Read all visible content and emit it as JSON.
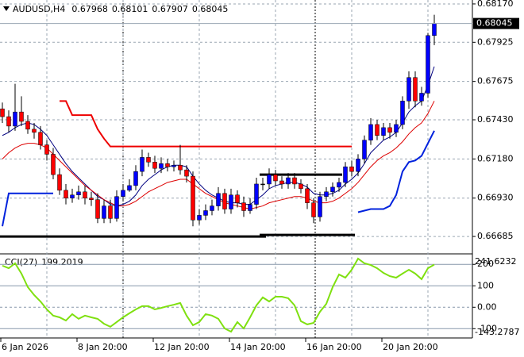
{
  "chart_data": [
    {
      "type": "candlestick",
      "title": "AUDUSD,H4",
      "categories": [
        "6 Jan 2026",
        null,
        null,
        null,
        null,
        null,
        null,
        null,
        null,
        null,
        null,
        null,
        "8 Jan 20:00",
        null,
        null,
        null,
        null,
        null,
        null,
        null,
        null,
        null,
        null,
        null,
        "12 Jan 20:00",
        null,
        null,
        null,
        null,
        null,
        null,
        null,
        null,
        null,
        null,
        null,
        "14 Jan 20:00",
        null,
        null,
        null,
        null,
        null,
        null,
        null,
        null,
        null,
        null,
        null,
        "16 Jan 20:00",
        null,
        null,
        null,
        null,
        null,
        null,
        null,
        null,
        null,
        null,
        null,
        "20 Jan 20:00",
        null,
        null,
        null,
        null,
        null,
        null,
        null,
        null
      ],
      "open": [
        0.675,
        0.6745,
        0.6739,
        0.6748,
        0.6742,
        0.6737,
        0.6735,
        0.6727,
        0.6721,
        0.6708,
        0.6698,
        0.6693,
        0.6695,
        0.6697,
        0.6693,
        0.6692,
        0.668,
        0.6688,
        0.668,
        0.6694,
        0.6698,
        0.6701,
        0.671,
        0.6719,
        0.6716,
        0.6712,
        0.6715,
        0.6713,
        0.6714,
        0.6711,
        0.6707,
        0.6679,
        0.6682,
        0.6685,
        0.6688,
        0.6696,
        0.6686,
        0.6695,
        0.669,
        0.6685,
        0.6689,
        0.6702,
        0.6702,
        0.6708,
        0.6704,
        0.6702,
        0.6706,
        0.6702,
        0.6699,
        0.669,
        0.6681,
        0.6694,
        0.6697,
        0.67,
        0.6703,
        0.6713,
        0.671,
        0.6718,
        0.673,
        0.674,
        0.6733,
        0.6738,
        0.6735,
        0.674,
        0.6755,
        0.677,
        0.6755,
        0.676,
        0.67968
      ],
      "high": [
        0.6754,
        0.6749,
        0.6766,
        0.6758,
        0.6746,
        0.6741,
        0.6739,
        0.673,
        0.6725,
        0.6712,
        0.6702,
        0.6699,
        0.6701,
        0.6701,
        0.6697,
        0.6696,
        0.6692,
        0.6692,
        0.6698,
        0.6702,
        0.6705,
        0.6714,
        0.6724,
        0.6722,
        0.672,
        0.6719,
        0.6718,
        0.6717,
        0.6727,
        0.6714,
        0.671,
        0.6686,
        0.6689,
        0.6692,
        0.67,
        0.6699,
        0.6699,
        0.6698,
        0.6694,
        0.6693,
        0.6706,
        0.6706,
        0.6712,
        0.6711,
        0.6707,
        0.6709,
        0.6709,
        0.6705,
        0.6702,
        0.6693,
        0.6697,
        0.67,
        0.6703,
        0.6706,
        0.6716,
        0.6717,
        0.6721,
        0.6733,
        0.6744,
        0.6743,
        0.6741,
        0.6741,
        0.6743,
        0.6758,
        0.6774,
        0.6774,
        0.6764,
        0.67985,
        0.68101
      ],
      "low": [
        0.6741,
        0.6735,
        0.6736,
        0.6739,
        0.6734,
        0.6731,
        0.6724,
        0.6717,
        0.6705,
        0.6695,
        0.6689,
        0.669,
        0.6692,
        0.6689,
        0.6688,
        0.6677,
        0.6677,
        0.6677,
        0.6678,
        0.6691,
        0.6697,
        0.6698,
        0.6707,
        0.6713,
        0.6709,
        0.6709,
        0.671,
        0.671,
        0.6708,
        0.6703,
        0.6675,
        0.6676,
        0.6679,
        0.6682,
        0.6685,
        0.6683,
        0.6683,
        0.6687,
        0.6681,
        0.6683,
        0.6686,
        0.6698,
        0.6699,
        0.6701,
        0.6699,
        0.6699,
        0.6699,
        0.6696,
        0.6686,
        0.6677,
        0.6678,
        0.6691,
        0.6694,
        0.6697,
        0.67,
        0.6707,
        0.6707,
        0.6715,
        0.6727,
        0.673,
        0.673,
        0.6731,
        0.6732,
        0.6737,
        0.675,
        0.6751,
        0.6752,
        0.6757,
        0.67907
      ],
      "close": [
        0.6745,
        0.6739,
        0.6748,
        0.6742,
        0.6737,
        0.6735,
        0.6727,
        0.6721,
        0.6708,
        0.6698,
        0.6693,
        0.6695,
        0.6697,
        0.6693,
        0.6692,
        0.668,
        0.6688,
        0.668,
        0.6694,
        0.6698,
        0.6701,
        0.671,
        0.6719,
        0.6716,
        0.6712,
        0.6715,
        0.6713,
        0.6714,
        0.6711,
        0.6707,
        0.6679,
        0.6682,
        0.6685,
        0.6688,
        0.6696,
        0.6686,
        0.6695,
        0.669,
        0.6685,
        0.6689,
        0.6702,
        0.6702,
        0.6708,
        0.6704,
        0.6702,
        0.6706,
        0.6702,
        0.6699,
        0.669,
        0.6681,
        0.6694,
        0.6697,
        0.67,
        0.6703,
        0.6713,
        0.671,
        0.6718,
        0.673,
        0.674,
        0.6733,
        0.6738,
        0.6735,
        0.674,
        0.6755,
        0.677,
        0.6755,
        0.676,
        0.67968,
        0.68045
      ],
      "up_color": "#0000ff",
      "down_color": "#ff0000",
      "lines": [
        {
          "color": "#000080",
          "values": [
            0.6733,
            0.6735,
            0.6738,
            0.674,
            0.6741,
            0.674,
            0.6737,
            0.6733,
            0.6727,
            0.6721,
            0.6715,
            0.671,
            0.6706,
            0.6702,
            0.6698,
            0.6694,
            0.6692,
            0.6689,
            0.6688,
            0.6689,
            0.6691,
            0.6695,
            0.6701,
            0.6705,
            0.6708,
            0.6711,
            0.6713,
            0.6714,
            0.6714,
            0.6713,
            0.6707,
            0.6702,
            0.6698,
            0.6695,
            0.6693,
            0.6691,
            0.669,
            0.669,
            0.6689,
            0.6689,
            0.6692,
            0.6695,
            0.6699,
            0.6701,
            0.6702,
            0.6703,
            0.6703,
            0.6702,
            0.67,
            0.6696,
            0.6695,
            0.6695,
            0.6696,
            0.6698,
            0.6702,
            0.6705,
            0.6709,
            0.6715,
            0.6722,
            0.6726,
            0.673,
            0.6732,
            0.6735,
            0.6741,
            0.6748,
            0.6752,
            0.6755,
            0.6765,
            0.6777
          ],
          "width": 1
        },
        {
          "color": "#dd0000",
          "values": [
            0.6718,
            0.6722,
            0.6725,
            0.6727,
            0.6728,
            0.6728,
            0.6727,
            0.6725,
            0.6721,
            0.6717,
            0.6713,
            0.6709,
            0.6705,
            0.6701,
            0.6698,
            0.6695,
            0.6692,
            0.669,
            0.6688,
            0.6688,
            0.6689,
            0.6691,
            0.6694,
            0.6697,
            0.6699,
            0.6701,
            0.6703,
            0.6704,
            0.6705,
            0.6705,
            0.6702,
            0.6699,
            0.6696,
            0.6694,
            0.6692,
            0.669,
            0.6689,
            0.6688,
            0.6687,
            0.6686,
            0.6687,
            0.6688,
            0.669,
            0.6691,
            0.6692,
            0.6693,
            0.6694,
            0.6694,
            0.6693,
            0.6691,
            0.669,
            0.669,
            0.6691,
            0.6693,
            0.6696,
            0.6699,
            0.6703,
            0.6708,
            0.6713,
            0.6717,
            0.672,
            0.6722,
            0.6725,
            0.6729,
            0.6734,
            0.6738,
            0.6741,
            0.6747,
            0.6755
          ],
          "width": 1
        },
        {
          "color": "#ee0000",
          "values": [
            null,
            null,
            null,
            null,
            null,
            null,
            null,
            null,
            null,
            0.6755,
            0.6755,
            0.6746,
            0.6746,
            0.6746,
            0.6746,
            0.6737,
            0.6731,
            0.6726,
            0.6726,
            0.6726,
            0.6726,
            0.6726,
            0.6726,
            0.6726,
            0.6726,
            0.6726,
            0.6726,
            0.6726,
            0.6726,
            0.6726,
            0.6726,
            0.6726,
            0.6726,
            0.6726,
            0.6726,
            0.6726,
            0.6726,
            0.6726,
            0.6726,
            0.6726,
            0.6726,
            0.6726,
            0.6726,
            0.6726,
            0.6726,
            0.6726,
            0.6726,
            0.6726,
            0.6726,
            0.6726,
            0.6726,
            0.6726,
            0.6726,
            0.6726,
            0.6726,
            0.6726,
            null,
            null,
            null,
            null,
            null,
            null,
            null,
            null,
            null,
            null,
            null,
            null,
            null
          ],
          "width": 2
        },
        {
          "color": "#0022dd",
          "values": [
            0.6675,
            0.6696,
            0.6696,
            0.6696,
            0.6696,
            0.6696,
            0.6696,
            0.6696,
            0.6696,
            null,
            null,
            null,
            null,
            null,
            null,
            null,
            null,
            null,
            null,
            null,
            null,
            null,
            null,
            null,
            null,
            null,
            null,
            null,
            null,
            null,
            null,
            null,
            null,
            null,
            null,
            null,
            null,
            null,
            null,
            null,
            null,
            null,
            null,
            null,
            null,
            null,
            null,
            null,
            null,
            null,
            null,
            null,
            null,
            null,
            null,
            null,
            0.6684,
            0.6685,
            0.6686,
            0.6686,
            0.6686,
            0.6688,
            0.6695,
            0.671,
            0.6716,
            0.6717,
            0.672,
            0.6728,
            0.6736
          ],
          "width": 2
        }
      ],
      "levels": [
        {
          "value": 0.66685,
          "from": 0,
          "to": 41
        },
        {
          "value": 0.66695,
          "from": 41,
          "to": 55
        },
        {
          "value": 0.6708,
          "from": 41,
          "to": 53
        }
      ],
      "level_color": "#000000",
      "ylim": [
        0.66584,
        0.6819
      ],
      "yticks": [
        {
          "value": 0.6817,
          "label": "0.68170"
        },
        0.67925,
        0.67675,
        {
          "value": 0.6743,
          "label": "0.67430"
        },
        {
          "value": 0.6718,
          "label": "0.67180"
        },
        {
          "value": 0.6693,
          "label": "0.66930"
        },
        0.66685
      ],
      "grid": true
    },
    {
      "type": "line",
      "title": "CCI(27)",
      "color": "#7fe010",
      "values": [
        194,
        182,
        205,
        157,
        94,
        57,
        27,
        -10,
        -39,
        -47,
        -62,
        -32,
        -54,
        -39,
        -47,
        -54,
        -77,
        -91,
        -69,
        -47,
        -28,
        -10,
        5,
        5,
        -10,
        -3,
        5,
        12,
        20,
        -39,
        -84,
        -69,
        -32,
        -39,
        -54,
        -99,
        -114,
        -69,
        -99,
        -47,
        9,
        46,
        27,
        49,
        49,
        42,
        9,
        -65,
        -80,
        -73,
        -21,
        16,
        94,
        153,
        138,
        175,
        227,
        205,
        197,
        182,
        160,
        145,
        138,
        157,
        175,
        157,
        131,
        182,
        199.2019
      ],
      "ylim": [
        -143.2787,
        241.6232
      ],
      "yticks": [
        200,
        100,
        {
          "value": 0,
          "label": "0.00"
        },
        -100
      ],
      "grid": true
    }
  ]
}
